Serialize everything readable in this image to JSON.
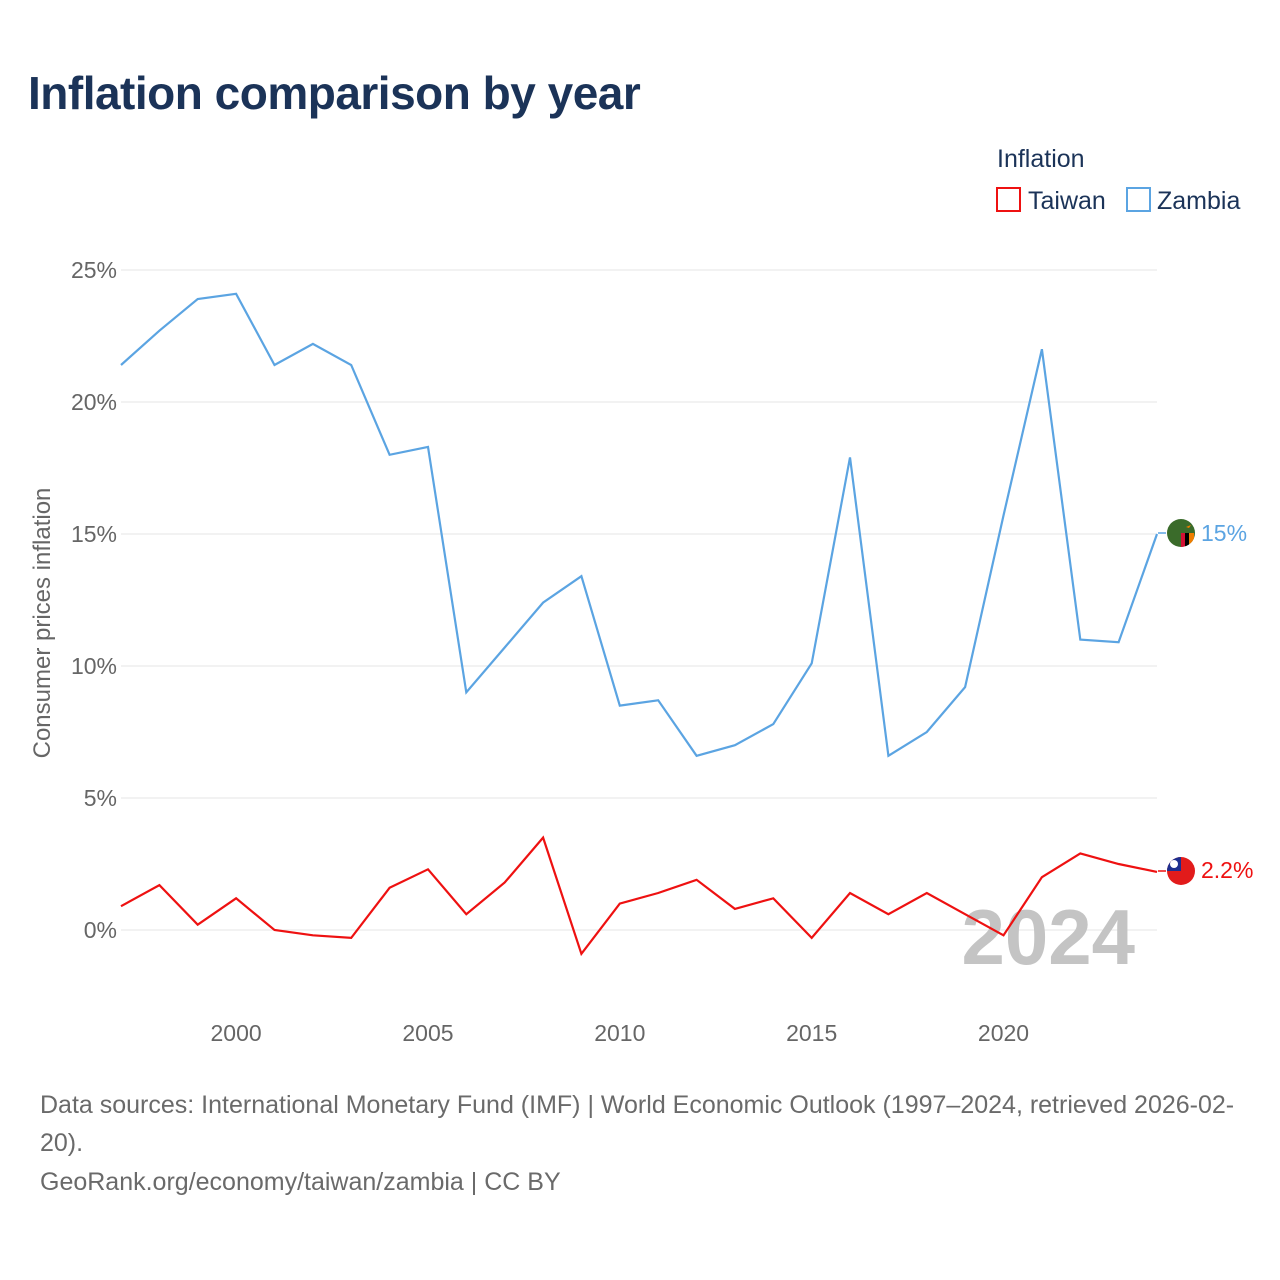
{
  "title": "Inflation comparison by year",
  "footer": {
    "sources": "Data sources: International Monetary Fund (IMF) | World Economic Outlook (1997–2024, retrieved 2026-02-20).",
    "credit": "GeoRank.org/economy/taiwan/zambia | CC BY"
  },
  "chart_data": {
    "type": "line",
    "title": "Inflation comparison by year",
    "ylabel": "Consumer prices inflation",
    "xlabel": "",
    "legend_title": "Inflation",
    "legend_position": "top-right",
    "current_year_label": "2024",
    "xlim": [
      1997,
      2024
    ],
    "ylim": [
      -3,
      26
    ],
    "x_ticks": [
      2000,
      2005,
      2010,
      2015,
      2020
    ],
    "x_tick_labels": [
      "2000",
      "2005",
      "2010",
      "2015",
      "2020"
    ],
    "y_ticks": [
      0,
      5,
      10,
      15,
      20,
      25
    ],
    "y_tick_labels": [
      "0%",
      "5%",
      "10%",
      "15%",
      "20%",
      "25%"
    ],
    "grid": true,
    "x": [
      1997,
      1998,
      1999,
      2000,
      2001,
      2002,
      2003,
      2004,
      2005,
      2006,
      2007,
      2008,
      2009,
      2010,
      2011,
      2012,
      2013,
      2014,
      2015,
      2016,
      2017,
      2018,
      2019,
      2020,
      2021,
      2022,
      2023,
      2024
    ],
    "series": [
      {
        "name": "Taiwan",
        "color": "#ee1111",
        "end_label": "2.2%",
        "flag_icon": "taiwan-flag-icon",
        "values": [
          0.9,
          1.7,
          0.2,
          1.2,
          0.0,
          -0.2,
          -0.3,
          1.6,
          2.3,
          0.6,
          1.8,
          3.5,
          -0.9,
          1.0,
          1.4,
          1.9,
          0.8,
          1.2,
          -0.3,
          1.4,
          0.6,
          1.4,
          0.6,
          -0.2,
          2.0,
          2.9,
          2.5,
          2.2
        ]
      },
      {
        "name": "Zambia",
        "color": "#5ba4e2",
        "end_label": "15%",
        "flag_icon": "zambia-flag-icon",
        "values": [
          21.4,
          22.7,
          23.9,
          24.1,
          21.4,
          22.2,
          21.4,
          18.0,
          18.3,
          9.0,
          10.7,
          12.4,
          13.4,
          8.5,
          8.7,
          6.6,
          7.0,
          7.8,
          10.1,
          17.9,
          6.6,
          7.5,
          9.2,
          15.7,
          22.0,
          11.0,
          10.9,
          15.0
        ]
      }
    ]
  }
}
